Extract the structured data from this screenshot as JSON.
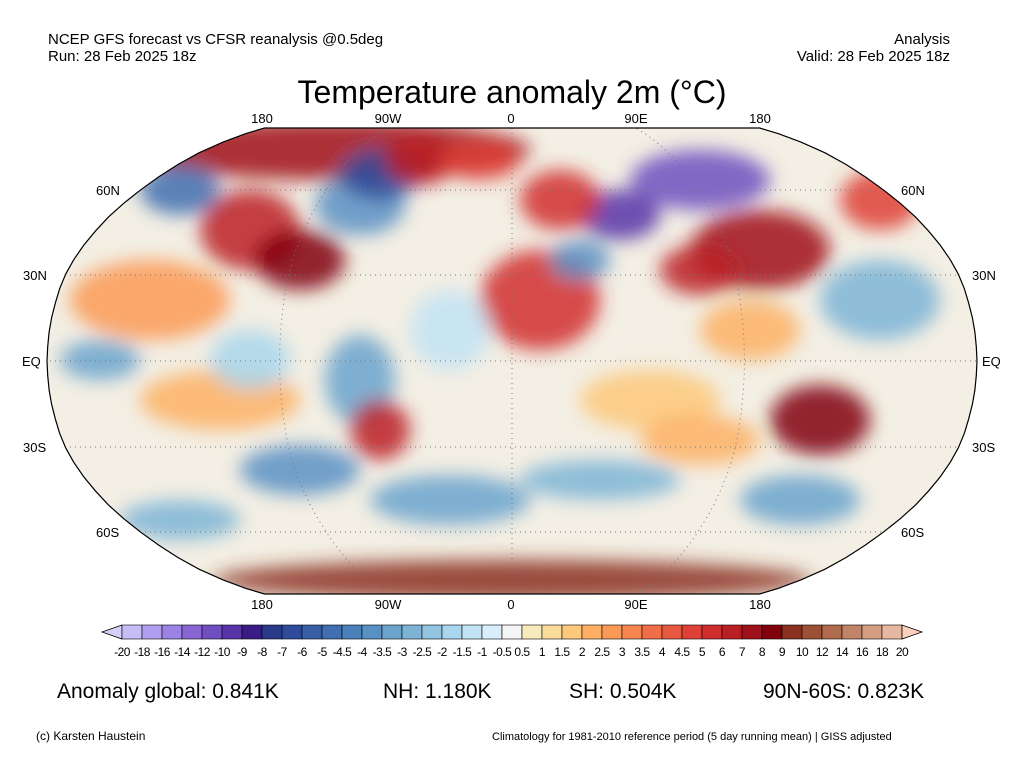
{
  "header": {
    "left_line1": "NCEP GFS forecast vs CFSR reanalysis @0.5deg",
    "left_line2": "Run: 28 Feb 2025 18z",
    "right_line1": "Analysis",
    "right_line2": "Valid: 28 Feb 2025 18z",
    "title": "Temperature anomaly 2m (°C)"
  },
  "map": {
    "projection": "Robinson",
    "lon_labels": [
      "180",
      "90W",
      "0",
      "90E",
      "180"
    ],
    "lat_labels": [
      "60N",
      "30N",
      "EQ",
      "30S",
      "60S"
    ],
    "gridlines": "dotted"
  },
  "colorbar": {
    "ticks": [
      "-20",
      "-18",
      "-16",
      "-14",
      "-12",
      "-10",
      "-9",
      "-8",
      "-7",
      "-6",
      "-5",
      "-4.5",
      "-4",
      "-3.5",
      "-3",
      "-2.5",
      "-2",
      "-1.5",
      "-1",
      "-0.5",
      "0.5",
      "1",
      "1.5",
      "2",
      "2.5",
      "3",
      "3.5",
      "4",
      "4.5",
      "5",
      "6",
      "7",
      "8",
      "9",
      "10",
      "12",
      "14",
      "16",
      "18",
      "20"
    ],
    "colors": [
      "#c5bdf5",
      "#b09ded",
      "#9c82e2",
      "#8966d5",
      "#6f4fc0",
      "#5634a8",
      "#3b1c84",
      "#2c3a8c",
      "#2f4a9a",
      "#3760a6",
      "#3f6fb0",
      "#4a80ba",
      "#5a91c4",
      "#6aa3cc",
      "#7db4d6",
      "#92c6e0",
      "#a9d6ec",
      "#c2e3f5",
      "#d9eefa",
      "#f4f4f4",
      "#f6ebbd",
      "#fadc9a",
      "#fdc87a",
      "#fdb064",
      "#fb9a56",
      "#f78550",
      "#f06d48",
      "#e75840",
      "#de3f36",
      "#d02d2d",
      "#bb1f24",
      "#a0121b",
      "#80000c",
      "#8a3020",
      "#9c5036",
      "#b06a4e",
      "#c28468",
      "#d49d82",
      "#e8b7a0"
    ],
    "under_color": "#d8d0f8",
    "over_color": "#fcd0bc"
  },
  "stats": {
    "global": "Anomaly global: 0.841K",
    "nh": "NH: 1.180K",
    "sh": "SH: 0.504K",
    "band": "90N-60S: 0.823K"
  },
  "footer": {
    "credit": "(c) Karsten Haustein",
    "note": "Climatology for 1981-2010 reference period (5 day running mean) | GISS adjusted"
  }
}
